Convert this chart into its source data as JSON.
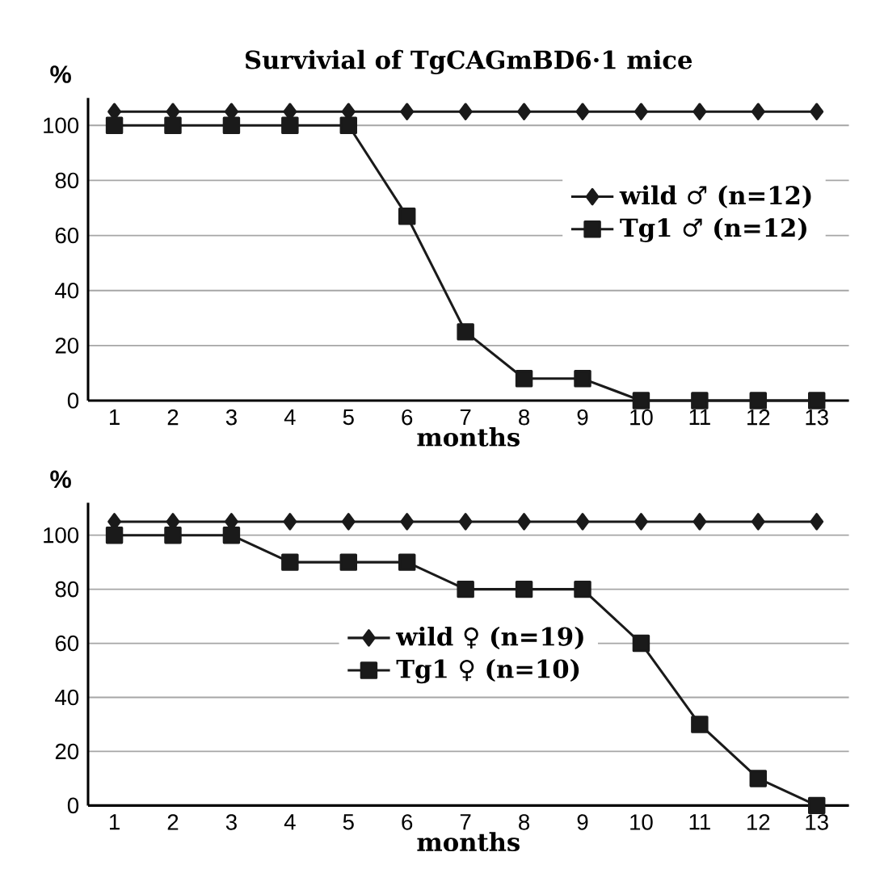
{
  "chart_data": [
    {
      "type": "line",
      "title": "Survivial of TgCAGmBD6·1 mice",
      "xlabel": "months",
      "ylabel": "%",
      "categories": [
        "1",
        "2",
        "3",
        "4",
        "5",
        "6",
        "7",
        "8",
        "9",
        "10",
        "11",
        "12",
        "13"
      ],
      "series": [
        {
          "name": "wild ♂ (n=12)",
          "color": "#1a1a1a",
          "marker": "diamond",
          "values": [
            105,
            105,
            105,
            105,
            105,
            105,
            105,
            105,
            105,
            105,
            105,
            105,
            105
          ]
        },
        {
          "name": "Tg1 ♂ (n=12)",
          "color": "#1a1a1a",
          "marker": "square",
          "values": [
            100,
            100,
            100,
            100,
            100,
            67,
            25,
            8,
            8,
            0,
            0,
            0,
            0
          ]
        }
      ],
      "ylim": [
        0,
        110
      ],
      "yticks": [
        0,
        20,
        40,
        60,
        80,
        100
      ],
      "grid": "y",
      "legend": "right",
      "line_style": "solid"
    },
    {
      "type": "line",
      "xlabel": "months",
      "ylabel": "%",
      "categories": [
        "1",
        "2",
        "3",
        "4",
        "5",
        "6",
        "7",
        "8",
        "9",
        "10",
        "11",
        "12",
        "13"
      ],
      "series": [
        {
          "name": "wild ♀ (n=19)",
          "color": "#1a1a1a",
          "marker": "diamond",
          "values": [
            105,
            105,
            105,
            105,
            105,
            105,
            105,
            105,
            105,
            105,
            105,
            105,
            105
          ]
        },
        {
          "name": "Tg1 ♀ (n=10)",
          "color": "#1a1a1a",
          "marker": "square",
          "values": [
            100,
            100,
            100,
            90,
            90,
            90,
            80,
            80,
            80,
            60,
            30,
            10,
            0
          ]
        }
      ],
      "ylim": [
        0,
        112
      ],
      "yticks": [
        0,
        20,
        40,
        60,
        80,
        100
      ],
      "grid": "y",
      "legend": "center",
      "line_style": "solid"
    }
  ]
}
